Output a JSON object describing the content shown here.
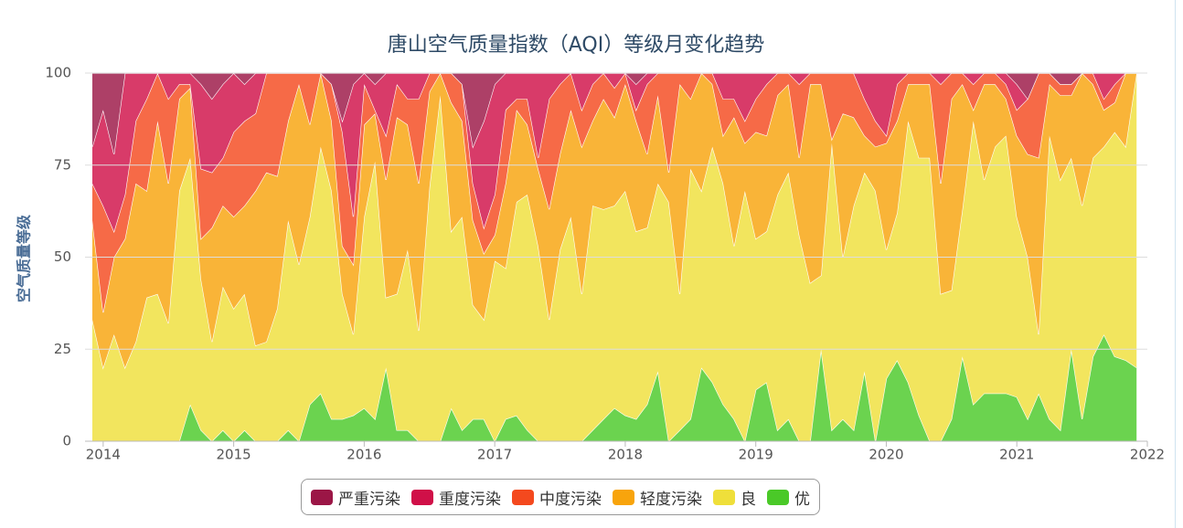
{
  "chart_data": {
    "type": "stacked-area",
    "title": "唐山空气质量指数（AQI）等级月变化趋势",
    "y_label": "空气质量等级",
    "x": [
      2013.917,
      2014,
      2014.083,
      2014.167,
      2014.25,
      2014.333,
      2014.417,
      2014.5,
      2014.583,
      2014.667,
      2014.75,
      2014.833,
      2014.917,
      2015,
      2015.083,
      2015.167,
      2015.25,
      2015.333,
      2015.417,
      2015.5,
      2015.583,
      2015.667,
      2015.75,
      2015.833,
      2015.917,
      2016,
      2016.083,
      2016.167,
      2016.25,
      2016.333,
      2016.417,
      2016.5,
      2016.583,
      2016.667,
      2016.75,
      2016.833,
      2016.917,
      2017,
      2017.083,
      2017.167,
      2017.25,
      2017.333,
      2017.417,
      2017.5,
      2017.583,
      2017.667,
      2017.75,
      2017.833,
      2017.917,
      2018,
      2018.083,
      2018.167,
      2018.25,
      2018.333,
      2018.417,
      2018.5,
      2018.583,
      2018.667,
      2018.75,
      2018.833,
      2018.917,
      2019,
      2019.083,
      2019.167,
      2019.25,
      2019.333,
      2019.417,
      2019.5,
      2019.583,
      2019.667,
      2019.75,
      2019.833,
      2019.917,
      2020,
      2020.083,
      2020.167,
      2020.25,
      2020.333,
      2020.417,
      2020.5,
      2020.583,
      2020.667,
      2020.75,
      2020.833,
      2020.917,
      2021,
      2021.083,
      2021.167,
      2021.25,
      2021.333,
      2021.417,
      2021.5,
      2021.583,
      2021.667,
      2021.75,
      2021.833,
      2021.917
    ],
    "series": [
      {
        "name": "严重污染",
        "color": "#9b1646",
        "values": [
          20,
          10,
          22,
          0,
          0,
          0,
          0,
          0,
          0,
          0,
          3,
          7,
          3,
          0,
          3,
          0,
          0,
          0,
          0,
          0,
          0,
          0,
          3,
          13,
          3,
          0,
          3,
          0,
          0,
          0,
          0,
          0,
          0,
          0,
          3,
          20,
          13,
          3,
          0,
          0,
          0,
          0,
          0,
          0,
          0,
          0,
          0,
          0,
          0,
          0,
          3,
          0,
          0,
          0,
          0,
          0,
          0,
          0,
          0,
          0,
          0,
          0,
          0,
          0,
          0,
          0,
          0,
          0,
          0,
          0,
          0,
          0,
          0,
          0,
          0,
          0,
          0,
          0,
          0,
          0,
          0,
          0,
          0,
          0,
          0,
          3,
          7,
          0,
          0,
          3,
          3,
          0,
          0,
          0,
          0,
          0,
          0
        ]
      },
      {
        "name": "重度污染",
        "color": "#d01048",
        "values": [
          10,
          26,
          21,
          33,
          13,
          7,
          0,
          7,
          3,
          3,
          23,
          20,
          20,
          16,
          10,
          11,
          0,
          0,
          0,
          0,
          0,
          0,
          0,
          3,
          36,
          3,
          7,
          17,
          3,
          7,
          7,
          0,
          0,
          0,
          0,
          10,
          29,
          30,
          10,
          7,
          7,
          23,
          7,
          3,
          0,
          10,
          3,
          0,
          4,
          0,
          7,
          3,
          0,
          0,
          0,
          0,
          0,
          0,
          7,
          7,
          13,
          7,
          3,
          0,
          0,
          3,
          0,
          0,
          0,
          0,
          0,
          7,
          13,
          17,
          3,
          0,
          0,
          0,
          3,
          0,
          0,
          3,
          0,
          0,
          3,
          7,
          0,
          0,
          0,
          0,
          0,
          0,
          0,
          7,
          3,
          0,
          0
        ]
      },
      {
        "name": "中度污染",
        "color": "#f4491e",
        "values": [
          10,
          29,
          7,
          12,
          17,
          25,
          13,
          23,
          4,
          1,
          19,
          15,
          13,
          23,
          23,
          21,
          27,
          28,
          13,
          3,
          14,
          0,
          10,
          31,
          13,
          11,
          1,
          12,
          9,
          7,
          23,
          5,
          0,
          8,
          10,
          10,
          7,
          11,
          20,
          3,
          7,
          3,
          30,
          19,
          10,
          10,
          10,
          7,
          8,
          3,
          3,
          19,
          6,
          27,
          3,
          7,
          0,
          3,
          10,
          5,
          6,
          9,
          14,
          6,
          3,
          20,
          3,
          3,
          18,
          11,
          12,
          10,
          7,
          2,
          10,
          3,
          3,
          3,
          27,
          7,
          3,
          7,
          3,
          3,
          4,
          7,
          15,
          23,
          3,
          3,
          3,
          0,
          3,
          3,
          5,
          0,
          0
        ]
      },
      {
        "name": "轻度污染",
        "color": "#f8a40c",
        "values": [
          27,
          15,
          21,
          35,
          43,
          29,
          47,
          38,
          25,
          19,
          11,
          31,
          22,
          25,
          24,
          42,
          46,
          36,
          27,
          49,
          25,
          20,
          19,
          13,
          19,
          25,
          13,
          32,
          48,
          34,
          40,
          26,
          6,
          35,
          26,
          23,
          18,
          7,
          23,
          25,
          19,
          21,
          30,
          26,
          29,
          40,
          23,
          30,
          24,
          29,
          30,
          20,
          24,
          8,
          57,
          19,
          32,
          17,
          13,
          35,
          13,
          29,
          26,
          27,
          24,
          21,
          54,
          52,
          1,
          39,
          24,
          10,
          12,
          29,
          25,
          10,
          20,
          20,
          30,
          52,
          34,
          3,
          26,
          17,
          10,
          22,
          28,
          48,
          14,
          23,
          17,
          36,
          20,
          10,
          8,
          20,
          0
        ]
      },
      {
        "name": "良",
        "color": "#efdf3a",
        "values": [
          33,
          20,
          29,
          20,
          27,
          39,
          40,
          32,
          68,
          67,
          41,
          27,
          39,
          36,
          37,
          26,
          27,
          36,
          57,
          48,
          51,
          67,
          62,
          34,
          22,
          52,
          70,
          19,
          37,
          49,
          30,
          69,
          94,
          48,
          58,
          31,
          27,
          49,
          41,
          58,
          64,
          53,
          33,
          52,
          61,
          40,
          61,
          57,
          55,
          61,
          51,
          48,
          51,
          65,
          37,
          68,
          48,
          64,
          60,
          47,
          68,
          41,
          41,
          64,
          67,
          56,
          43,
          20,
          78,
          44,
          61,
          54,
          68,
          35,
          40,
          71,
          70,
          77,
          40,
          35,
          40,
          77,
          58,
          67,
          70,
          49,
          44,
          16,
          77,
          68,
          52,
          58,
          54,
          51,
          61,
          58,
          80
        ]
      },
      {
        "name": "优",
        "color": "#4ac928",
        "values": [
          0,
          0,
          0,
          0,
          0,
          0,
          0,
          0,
          0,
          10,
          3,
          0,
          3,
          0,
          3,
          0,
          0,
          0,
          3,
          0,
          10,
          13,
          6,
          6,
          7,
          9,
          6,
          20,
          3,
          3,
          0,
          0,
          0,
          9,
          3,
          6,
          6,
          0,
          6,
          7,
          3,
          0,
          0,
          0,
          0,
          0,
          3,
          6,
          9,
          7,
          6,
          10,
          19,
          0,
          3,
          6,
          20,
          16,
          10,
          6,
          0,
          14,
          16,
          3,
          6,
          0,
          0,
          25,
          3,
          6,
          3,
          19,
          0,
          17,
          22,
          16,
          7,
          0,
          0,
          6,
          23,
          10,
          13,
          13,
          13,
          12,
          6,
          13,
          6,
          3,
          25,
          6,
          23,
          29,
          23,
          22,
          20
        ]
      }
    ],
    "xlim": [
      2013.917,
      2022.0
    ],
    "xticks": [
      2014,
      2015,
      2016,
      2017,
      2018,
      2019,
      2020,
      2021,
      2022
    ],
    "ylim": [
      0,
      100
    ],
    "yticks": [
      0,
      25,
      50,
      75,
      100
    ],
    "grid": true
  }
}
